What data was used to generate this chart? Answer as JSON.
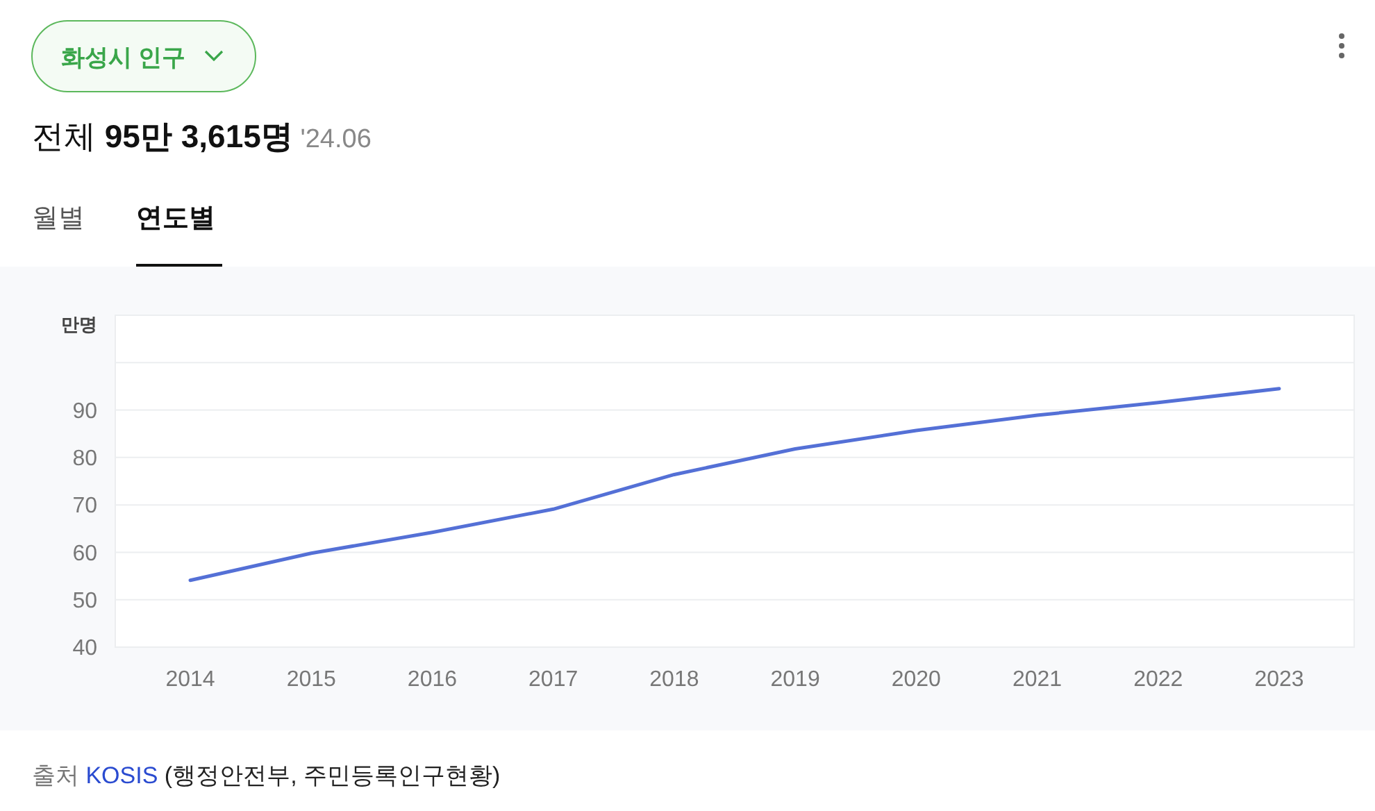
{
  "chart_data": {
    "type": "line",
    "title": "화성시 인구",
    "subtitle": "전체 95만 3,615명 '24.06",
    "ylabel": "만명",
    "annotations": [
      "월별",
      "연도별",
      "출처 KOSIS (행정안전부, 주민등록인구현황)"
    ],
    "categories": [
      "2014",
      "2015",
      "2016",
      "2017",
      "2018",
      "2019",
      "2020",
      "2021",
      "2022",
      "2023"
    ],
    "series": [
      {
        "color": "#5470d6",
        "values": [
          54.1,
          59.8,
          64.2,
          69.1,
          76.4,
          81.8,
          85.7,
          88.9,
          91.6,
          94.5
        ]
      }
    ],
    "ylim": [
      40,
      110
    ],
    "yticks": [
      40,
      50,
      60,
      70,
      80,
      90,
      {
        "value": 100,
        "label": null
      },
      {
        "value": 110,
        "label": null
      }
    ],
    "grid": true,
    "marker": "none",
    "line_style": "solid"
  }
}
